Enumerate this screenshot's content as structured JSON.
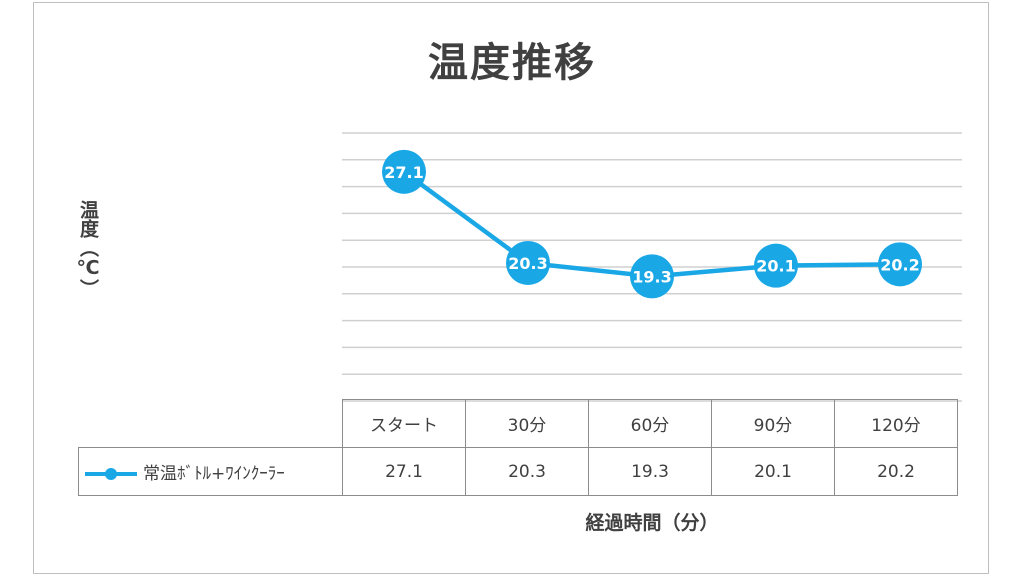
{
  "chart_data": {
    "type": "line",
    "title": "温度推移",
    "ylabel": "温度（℃）",
    "xlabel": "経過時間（分）",
    "categories": [
      "スタート",
      "30分",
      "60分",
      "90分",
      "120分"
    ],
    "series": [
      {
        "name": "常温ﾎﾞﾄﾙ+ﾜｲﾝｸｰﾗｰ",
        "values": [
          27.1,
          20.3,
          19.3,
          20.1,
          20.2
        ],
        "color": "#1aa7e6"
      }
    ],
    "ylim": [
      10,
      30
    ],
    "y_gridlines": [
      10,
      12,
      14,
      16,
      18,
      20,
      22,
      24,
      26,
      28,
      30
    ],
    "grid": true,
    "legend": "data-table"
  }
}
